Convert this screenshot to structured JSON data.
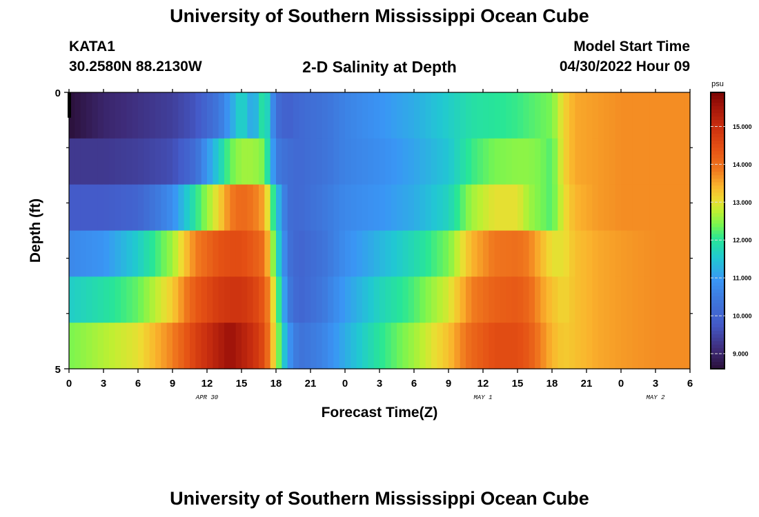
{
  "header": {
    "title": "University of Southern Mississippi Ocean Cube",
    "station_id": "KATA1",
    "coordinates": "30.2580N  88.2130W",
    "subtitle": "2-D Salinity at Depth",
    "model_start_label": "Model Start Time",
    "model_start_value": "04/30/2022 Hour 09"
  },
  "footer": {
    "title": "University of Southern Mississippi Ocean Cube"
  },
  "chart_data": {
    "type": "heatmap",
    "title": "2-D Salinity at Depth",
    "xlabel": "Forecast Time(Z)",
    "ylabel": "Depth (ft)",
    "x_range_hours": [
      0,
      54
    ],
    "x_ticks": [
      {
        "hour": 0,
        "label": "0"
      },
      {
        "hour": 3,
        "label": "3"
      },
      {
        "hour": 6,
        "label": "6"
      },
      {
        "hour": 9,
        "label": "9"
      },
      {
        "hour": 12,
        "label": "12"
      },
      {
        "hour": 15,
        "label": "15"
      },
      {
        "hour": 18,
        "label": "18"
      },
      {
        "hour": 21,
        "label": "21"
      },
      {
        "hour": 24,
        "label": "0"
      },
      {
        "hour": 27,
        "label": "3"
      },
      {
        "hour": 30,
        "label": "6"
      },
      {
        "hour": 33,
        "label": "9"
      },
      {
        "hour": 36,
        "label": "12"
      },
      {
        "hour": 39,
        "label": "15"
      },
      {
        "hour": 42,
        "label": "18"
      },
      {
        "hour": 45,
        "label": "21"
      },
      {
        "hour": 48,
        "label": "0"
      },
      {
        "hour": 51,
        "label": "3"
      },
      {
        "hour": 54,
        "label": "6"
      }
    ],
    "date_labels": [
      {
        "hour": 12,
        "label": "APR 30"
      },
      {
        "hour": 36,
        "label": "MAY 1"
      },
      {
        "hour": 51,
        "label": "MAY 2"
      }
    ],
    "y_range": [
      0,
      5
    ],
    "y_tick_labels": [
      {
        "value": 0,
        "label": "0"
      },
      {
        "value": 5,
        "label": "5"
      }
    ],
    "y_minor_ticks": [
      1,
      2,
      3,
      4
    ],
    "depth_layers": [
      0,
      1,
      2,
      3,
      4
    ],
    "colorbar": {
      "unit": "psu",
      "range": [
        8.6,
        15.9
      ],
      "ticks": [
        9.0,
        10.0,
        11.0,
        12.0,
        13.0,
        14.0,
        15.0
      ],
      "tick_labels": [
        "9.000",
        "10.000",
        "11.000",
        "12.000",
        "13.000",
        "14.000",
        "15.000"
      ]
    },
    "keyframe_hours": [
      0,
      3,
      6,
      9,
      11,
      13,
      14,
      15,
      16,
      17,
      18,
      19,
      20,
      22,
      24,
      27,
      30,
      33,
      35,
      37,
      39,
      40,
      41,
      42,
      43,
      44,
      46,
      48,
      51,
      54
    ],
    "salinity_layers": [
      [
        8.6,
        9.0,
        9.2,
        9.4,
        9.7,
        10.4,
        11.0,
        11.8,
        11.0,
        12.2,
        10.2,
        9.9,
        10.1,
        10.3,
        10.6,
        10.9,
        11.2,
        11.6,
        11.9,
        12.0,
        12.1,
        12.2,
        12.3,
        12.4,
        13.1,
        13.5,
        13.6,
        13.7,
        13.7,
        13.7
      ],
      [
        9.3,
        9.3,
        9.4,
        9.6,
        10.2,
        11.6,
        12.3,
        12.6,
        12.6,
        12.4,
        10.5,
        10.2,
        10.1,
        10.3,
        10.6,
        10.8,
        11.1,
        11.5,
        12.1,
        12.4,
        12.5,
        12.5,
        12.4,
        12.2,
        13.1,
        13.5,
        13.6,
        13.7,
        13.7,
        13.7
      ],
      [
        9.8,
        9.8,
        10.0,
        10.8,
        12.0,
        13.1,
        13.8,
        14.1,
        13.9,
        13.5,
        11.6,
        10.2,
        10.1,
        10.4,
        10.7,
        10.9,
        11.2,
        11.7,
        12.6,
        13.0,
        13.0,
        12.6,
        12.4,
        12.2,
        13.0,
        13.4,
        13.6,
        13.7,
        13.7,
        13.7
      ],
      [
        10.7,
        10.9,
        11.6,
        12.6,
        13.8,
        14.4,
        14.5,
        14.5,
        14.3,
        14.0,
        12.0,
        10.3,
        10.0,
        10.3,
        10.8,
        11.3,
        11.8,
        12.4,
        13.4,
        13.9,
        14.0,
        13.8,
        13.4,
        13.0,
        13.0,
        13.3,
        13.5,
        13.6,
        13.7,
        13.7
      ],
      [
        11.6,
        11.9,
        12.3,
        13.2,
        14.3,
        14.8,
        14.9,
        14.9,
        14.7,
        14.3,
        12.6,
        10.5,
        10.0,
        10.4,
        11.0,
        11.7,
        12.2,
        12.9,
        13.8,
        14.2,
        14.3,
        14.1,
        13.6,
        13.3,
        13.1,
        13.3,
        13.5,
        13.6,
        13.7,
        13.7
      ],
      [
        12.4,
        12.7,
        13.0,
        13.8,
        14.7,
        15.3,
        15.6,
        15.3,
        15.0,
        14.5,
        12.8,
        11.0,
        10.3,
        10.6,
        11.2,
        12.0,
        12.6,
        13.3,
        14.1,
        14.5,
        14.5,
        14.3,
        13.8,
        13.4,
        13.2,
        13.3,
        13.5,
        13.6,
        13.7,
        13.7
      ]
    ]
  }
}
